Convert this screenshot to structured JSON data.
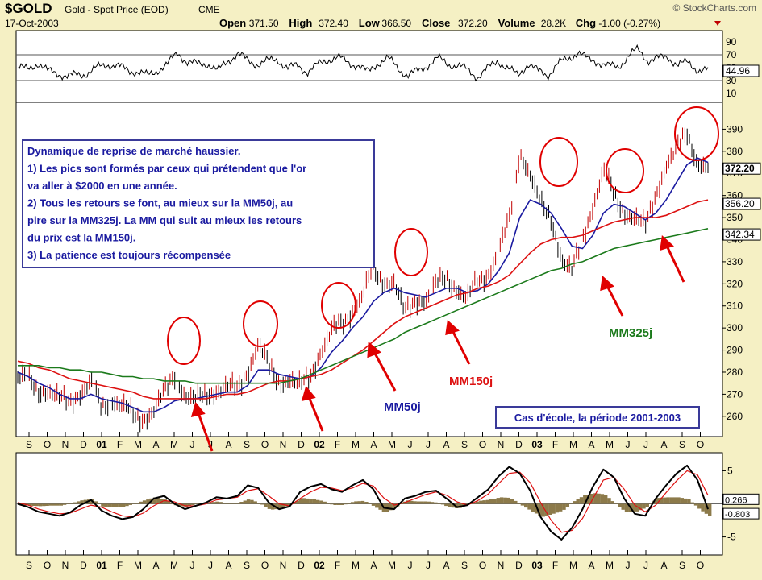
{
  "header": {
    "symbol": "$GOLD",
    "description": "Gold - Spot Price (EOD)",
    "exchange": "CME",
    "date": "17-Oct-2003",
    "source": "© StockCharts.com",
    "ohlc": [
      {
        "label": "Open",
        "value": "371.50"
      },
      {
        "label": "High",
        "value": "372.40"
      },
      {
        "label": "Low",
        "value": "366.50"
      },
      {
        "label": "Close",
        "value": "372.20"
      },
      {
        "label": "Volume",
        "value": "28.2K"
      },
      {
        "label": "Chg",
        "value": "-1.00 (-0.27%)"
      }
    ]
  },
  "colors": {
    "background": "#f5f0c4",
    "panel": "#ffffff",
    "price": "#000000",
    "up_tick": "#c00000",
    "ma50": "#1a1aa0",
    "ma150": "#dd1111",
    "ma325": "#1b7a1b",
    "annotation": "#e00000",
    "text_blue": "#1a1aa0",
    "macd_fill": "#8c7a4a"
  },
  "chart_data": [
    {
      "type": "line",
      "panel": "RSI",
      "y_ticks": [
        90,
        70,
        50,
        30,
        10
      ],
      "ylim": [
        0,
        100
      ],
      "reference_lines": [
        70,
        30
      ],
      "last_value": "44.96",
      "values": [
        50,
        47,
        58,
        44,
        42,
        36,
        39,
        42,
        50,
        56,
        52,
        46,
        44,
        37,
        47,
        55,
        74,
        58,
        55,
        57,
        44,
        61,
        72,
        60,
        56,
        60,
        63,
        49,
        53,
        44,
        54,
        63,
        66,
        58,
        54,
        42,
        58,
        64,
        50,
        38,
        44,
        55,
        64,
        56,
        53,
        46,
        36,
        48,
        62,
        48,
        38,
        57,
        44,
        39,
        56,
        63,
        75,
        62,
        60,
        52,
        51,
        68,
        78,
        62,
        64,
        67,
        54,
        58,
        47,
        45
      ]
    },
    {
      "type": "line",
      "panel": "price",
      "title": "Gold - Spot Price (EOD)",
      "x_tick_labels": [
        "S",
        "O",
        "N",
        "D",
        "01",
        "F",
        "M",
        "A",
        "M",
        "J",
        "J",
        "A",
        "S",
        "O",
        "N",
        "D",
        "02",
        "F",
        "M",
        "A",
        "M",
        "J",
        "J",
        "A",
        "S",
        "O",
        "N",
        "D",
        "03",
        "F",
        "M",
        "A",
        "M",
        "J",
        "J",
        "A",
        "S",
        "O"
      ],
      "y_ticks": [
        390,
        380,
        370,
        360,
        350,
        340,
        330,
        320,
        310,
        300,
        290,
        280,
        270,
        260
      ],
      "ylim": [
        253,
        400
      ],
      "price_labels": [
        "372.20",
        "356.20",
        "342.34"
      ],
      "series": [
        {
          "name": "$GOLD",
          "values": [
            278,
            276,
            272,
            272,
            267,
            267,
            271,
            275,
            264,
            268,
            265,
            260,
            259,
            263,
            270,
            279,
            270,
            267,
            270,
            272,
            273,
            272,
            281,
            293,
            282,
            276,
            277,
            273,
            279,
            290,
            298,
            302,
            308,
            315,
            326,
            321,
            321,
            306,
            313,
            313,
            319,
            323,
            318,
            313,
            321,
            325,
            335,
            348,
            380,
            370,
            355,
            350,
            332,
            325,
            340,
            356,
            371,
            360,
            353,
            350,
            345,
            361,
            374,
            380,
            389,
            375,
            372
          ]
        }
      ],
      "moving_averages": [
        {
          "name": "MM50j",
          "values": [
            280,
            278,
            275,
            273,
            270,
            268,
            268,
            270,
            268,
            267,
            266,
            264,
            262,
            262,
            264,
            267,
            268,
            268,
            269,
            270,
            271,
            271,
            274,
            281,
            281,
            279,
            278,
            277,
            278,
            282,
            289,
            294,
            300,
            305,
            312,
            316,
            318,
            316,
            315,
            314,
            316,
            318,
            318,
            316,
            317,
            320,
            326,
            334,
            350,
            358,
            356,
            352,
            345,
            337,
            336,
            342,
            352,
            356,
            355,
            352,
            349,
            352,
            358,
            366,
            374,
            377,
            375
          ]
        },
        {
          "name": "MM150j",
          "values": [
            285,
            284,
            282,
            281,
            279,
            277,
            276,
            275,
            274,
            273,
            272,
            271,
            269,
            268,
            268,
            268,
            268,
            268,
            268,
            269,
            270,
            270,
            271,
            273,
            275,
            276,
            276,
            277,
            278,
            279,
            281,
            284,
            287,
            290,
            294,
            298,
            302,
            305,
            307,
            309,
            311,
            313,
            315,
            316,
            318,
            319,
            321,
            324,
            329,
            334,
            338,
            340,
            341,
            341,
            342,
            344,
            346,
            348,
            349,
            350,
            350,
            350,
            351,
            353,
            355,
            357,
            358
          ]
        },
        {
          "name": "MM325j",
          "values": [
            283,
            283,
            283,
            282,
            282,
            281,
            281,
            280,
            280,
            279,
            278,
            278,
            277,
            277,
            276,
            276,
            276,
            275,
            275,
            275,
            275,
            275,
            275,
            275,
            275,
            275,
            276,
            277,
            279,
            281,
            283,
            285,
            287,
            289,
            291,
            293,
            295,
            298,
            300,
            302,
            304,
            306,
            308,
            310,
            312,
            314,
            316,
            318,
            320,
            322,
            324,
            326,
            327,
            329,
            330,
            332,
            334,
            336,
            337,
            338,
            339,
            340,
            341,
            342,
            343,
            344,
            345
          ]
        }
      ]
    },
    {
      "type": "line",
      "panel": "MACD",
      "x_tick_labels": [
        "S",
        "O",
        "N",
        "D",
        "01",
        "F",
        "M",
        "A",
        "M",
        "J",
        "J",
        "A",
        "S",
        "O",
        "N",
        "D",
        "02",
        "F",
        "M",
        "A",
        "M",
        "J",
        "J",
        "A",
        "S",
        "O",
        "N",
        "D",
        "03",
        "F",
        "M",
        "A",
        "M",
        "J",
        "J",
        "A",
        "S",
        "O"
      ],
      "y_ticks": [
        5,
        0,
        -5
      ],
      "ylim": [
        -7,
        7
      ],
      "value_labels": [
        "0.266",
        "-0.803"
      ],
      "series": [
        {
          "name": "MACD",
          "values": [
            0,
            -0.5,
            -1.2,
            -1.5,
            -1.8,
            -1.3,
            -0.2,
            0.6,
            -1.0,
            -1.8,
            -2.3,
            -2.0,
            -0.8,
            0.8,
            1.2,
            0.0,
            -0.8,
            -0.3,
            0.2,
            1.0,
            0.8,
            1.2,
            2.8,
            2.4,
            0.2,
            -0.8,
            -0.4,
            1.8,
            2.6,
            3.0,
            2.2,
            1.8,
            2.8,
            3.6,
            2.2,
            -0.6,
            -0.8,
            0.8,
            1.2,
            1.8,
            2.0,
            0.8,
            -0.5,
            -0.2,
            1.0,
            2.2,
            4.2,
            5.6,
            4.6,
            2.0,
            -2.0,
            -4.2,
            -5.4,
            -3.6,
            -0.8,
            2.6,
            5.2,
            4.0,
            0.8,
            -1.5,
            -1.8,
            0.8,
            2.8,
            4.6,
            5.8,
            3.6,
            -0.8
          ]
        },
        {
          "name": "Signal",
          "values": [
            0.2,
            -0.2,
            -0.8,
            -1.2,
            -1.5,
            -1.4,
            -0.8,
            -0.2,
            -0.5,
            -1.2,
            -1.8,
            -2.0,
            -1.4,
            -0.3,
            0.5,
            0.3,
            -0.3,
            -0.3,
            0.0,
            0.6,
            0.8,
            1.0,
            2.0,
            2.3,
            1.2,
            0.0,
            -0.3,
            0.8,
            1.8,
            2.5,
            2.4,
            2.0,
            2.4,
            3.1,
            2.7,
            0.9,
            -0.2,
            0.2,
            0.8,
            1.4,
            1.8,
            1.3,
            0.3,
            -0.2,
            0.5,
            1.5,
            3.1,
            4.6,
            4.8,
            3.2,
            0.2,
            -2.5,
            -4.3,
            -4.0,
            -2.2,
            0.8,
            3.6,
            4.0,
            2.2,
            -0.2,
            -1.2,
            -0.2,
            1.7,
            3.5,
            5.0,
            4.4,
            1.3
          ]
        }
      ]
    }
  ],
  "annotations": {
    "info_box_lines": [
      "Dynamique de reprise de marché haussier.",
      "1) Les pics sont formés par ceux qui prétendent que l'or",
      "va aller à $2000 en une année.",
      "2) Tous les retours se font, au  mieux sur la MM50j, au",
      "pire sur la MM325j. La MM qui suit au  mieux les retours",
      "du prix est la MM150j.",
      "3) La patience est toujours récompensée"
    ],
    "period_box": "Cas d'école, la période 2001-2003",
    "ma50_label": "MM50j",
    "ma150_label": "MM150j",
    "ma325_label": "MM325j"
  }
}
